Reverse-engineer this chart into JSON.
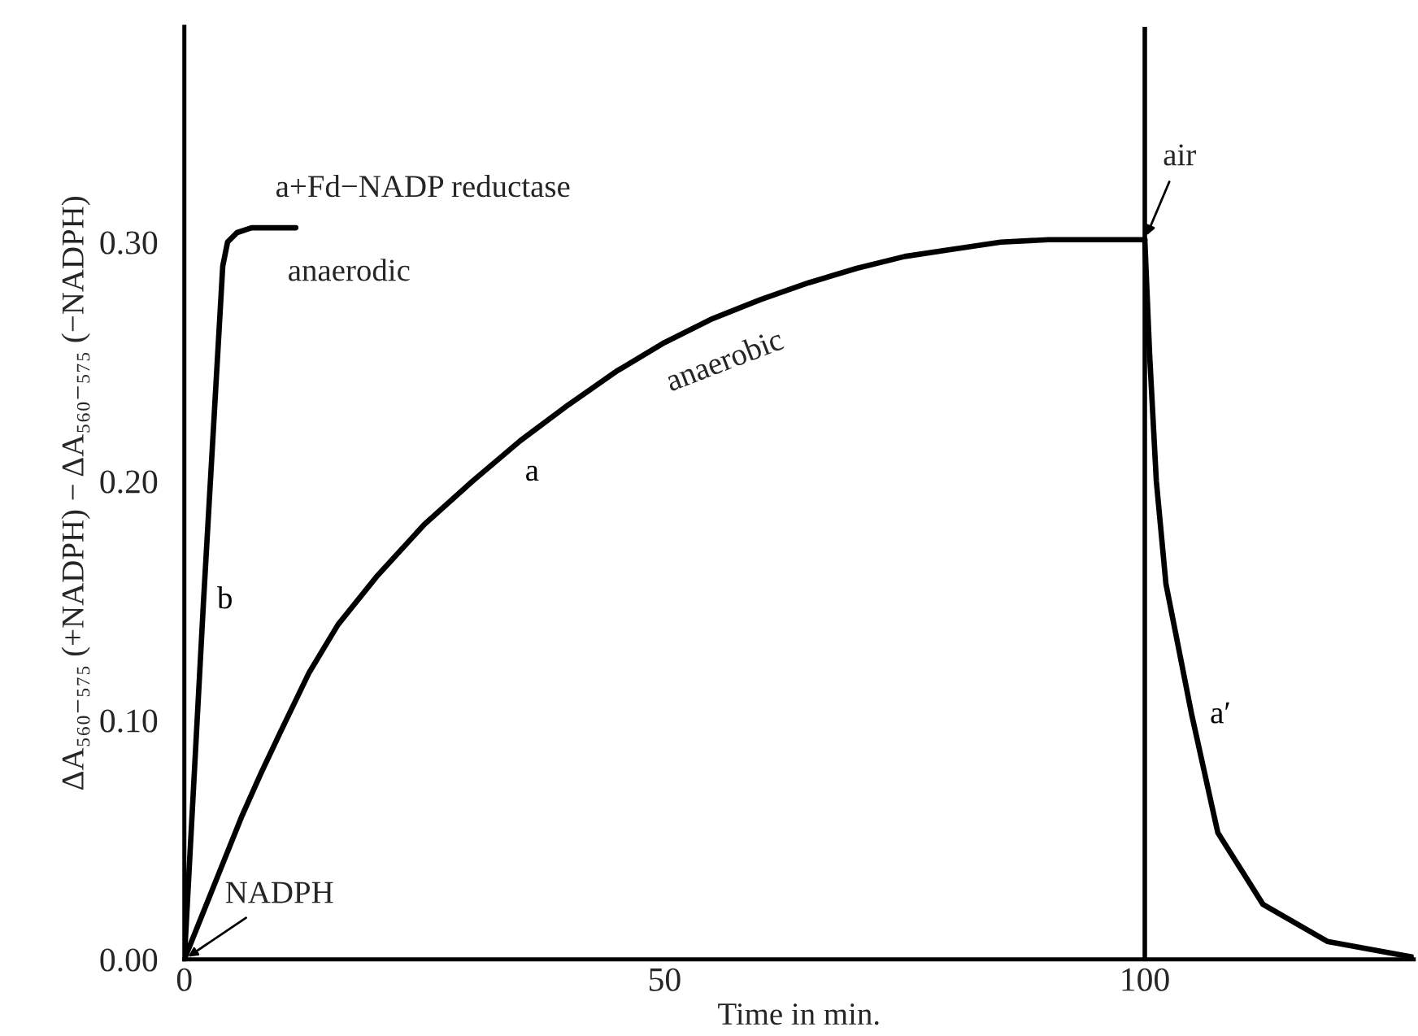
{
  "chart_data": {
    "type": "line",
    "xlabel": "Time in min.",
    "ylabel": "ΔA₅₆₀₋₅₇₅ (+NADPH) − ΔA₅₆₀₋₅₇₅ (−NADPH)",
    "xlim": [
      0,
      128
    ],
    "ylim": [
      0,
      0.39
    ],
    "xticks": [
      0,
      50,
      100
    ],
    "yticks": [
      {
        "value": 0,
        "label": "0.00"
      },
      {
        "value": 0.1,
        "label": "0.10"
      },
      {
        "value": 0.2,
        "label": "0.20"
      },
      {
        "value": 0.3,
        "label": "0.30"
      }
    ],
    "grid": false,
    "series": [
      {
        "name": "b",
        "color": "#000000",
        "x": [
          0,
          2,
          4,
          4.5,
          5.5,
          7,
          11.6
        ],
        "values": [
          0,
          0.15,
          0.29,
          0.3,
          0.304,
          0.306,
          0.306
        ]
      },
      {
        "name": "a",
        "color": "#000000",
        "x": [
          0,
          2,
          4,
          6,
          8,
          10,
          13,
          16,
          20,
          25,
          30,
          35,
          40,
          45,
          50,
          55,
          60,
          65,
          70,
          75,
          80,
          85,
          90,
          100
        ],
        "values": [
          0,
          0.02,
          0.04,
          0.06,
          0.078,
          0.095,
          0.12,
          0.14,
          0.16,
          0.182,
          0.2,
          0.217,
          0.232,
          0.246,
          0.258,
          0.268,
          0.276,
          0.283,
          0.289,
          0.294,
          0.297,
          0.3,
          0.301,
          0.301
        ]
      },
      {
        "name": "a′",
        "color": "#000000",
        "x": [
          100,
          100.5,
          101.2,
          102.2,
          104.9,
          107.6,
          112.3,
          119,
          127.8
        ],
        "values": [
          0.301,
          0.253,
          0.2,
          0.157,
          0.102,
          0.053,
          0.023,
          0.0075,
          0.001
        ]
      }
    ],
    "ref_lines": [
      {
        "axis": "x",
        "value": 100,
        "label": "air",
        "color": "#000000"
      }
    ],
    "annotations": [
      "a+Fd−NADP reductase",
      "anaerodic",
      "anaerobic",
      {
        "text": "NADPH",
        "x": 0,
        "y": 0
      }
    ]
  }
}
